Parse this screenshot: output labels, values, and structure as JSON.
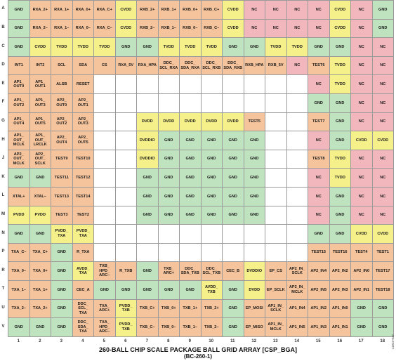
{
  "title": "260-BALL CHIP SCALE PACKAGE BALL GRID ARRAY [CSP_BGA]",
  "subtitle": "(BC-260-1)",
  "figure_id": "11823-037",
  "columns": [
    "1",
    "2",
    "3",
    "4",
    "5",
    "6",
    "7",
    "8",
    "9",
    "10",
    "11",
    "12",
    "13",
    "14",
    "15",
    "16",
    "17",
    "18"
  ],
  "palette": {
    "G": "#bfe3bf",
    "Y": "#f6f08a",
    "O": "#f6c49c",
    "W": "#ffffff",
    "R": "#f5b0b0",
    "N": "#f2b7bd"
  },
  "rows": [
    {
      "label": "A",
      "cells": [
        "GND|G",
        "RXA_2+|O",
        "RXA_1+|O",
        "RXA_0+|O",
        "RXA_C+|O",
        "CVDD|Y",
        "RXB_2+|O",
        "RXB_1+|O",
        "RXB_0+|O",
        "RXB_C+|O",
        "CVDD|Y",
        "NC|N",
        "NC|N",
        "NC|N",
        "NC|N",
        "CVDD|Y",
        "NC|N",
        "GND|G"
      ]
    },
    {
      "label": "B",
      "cells": [
        "GND|G",
        "RXA_2–|O",
        "RXA_1–|O",
        "RXA_0–|O",
        "RXA_C–|O",
        "CVDD|Y",
        "RXB_2–|O",
        "RXB_1–|O",
        "RXB_0–|O",
        "RXB_C–|O",
        "CVDD|Y",
        "NC|N",
        "NC|N",
        "NC|N",
        "NC|N",
        "CVDD|Y",
        "NC|N",
        "GND|G"
      ]
    },
    {
      "label": "C",
      "cells": [
        "GND|G",
        "CVDD|Y",
        "TVDD|Y",
        "TVDD|Y",
        "TVDD|Y",
        "GND|G",
        "GND|G",
        "TVDD|Y",
        "TVDD|Y",
        "TVDD|Y",
        "GND|G",
        "GND|G",
        "TVDD|Y",
        "TVDD|Y",
        "GND|G",
        "GND|G",
        "NC|N",
        "NC|N"
      ]
    },
    {
      "label": "D",
      "cells": [
        "INT1|O",
        "INT2|O",
        "SCL|O",
        "SDA|O",
        "CS|O",
        "RXA_5V|O",
        "RXA_HPA|O",
        "DDC_\nSCL_RXA|O",
        "DDC_\nSDA_RXA|O",
        "DDC_\nSCL_RXB|O",
        "DDC_\nSDA_RXB|O",
        "RXB_HPA|O",
        "RXB_5V|O",
        "NC|N",
        "TEST6|O",
        "TVDD|Y",
        "NC|N",
        "NC|N"
      ]
    },
    {
      "label": "E",
      "cells": [
        "AP1_\nOUT0|O",
        "AP1_\nOUT1|O",
        "ALSB|O",
        "RESET|O",
        "|W",
        "|W",
        "|W",
        "|W",
        "|W",
        "|W",
        "|W",
        "|W",
        "|W",
        "|W",
        "NC|N",
        "TVDD|Y",
        "NC|N",
        "NC|N"
      ]
    },
    {
      "label": "F",
      "cells": [
        "AP1_\nOUT2|O",
        "AP1_\nOUT3|O",
        "AP2_\nOUT0|O",
        "AP2_\nOUT1|O",
        "|W",
        "|W",
        "|W",
        "|W",
        "|W",
        "|W",
        "|W",
        "|W",
        "|W",
        "|W",
        "GND|G",
        "GND|G",
        "NC|N",
        "NC|N"
      ]
    },
    {
      "label": "G",
      "cells": [
        "AP1_\nOUT4|O",
        "AP1_\nOUT5|O",
        "AP2_\nOUT2|O",
        "AP2_\nOUT3|O",
        "|W",
        "|W",
        "DVDD|Y",
        "DVDD|Y",
        "DVDD|Y",
        "DVDD|Y",
        "DVDD|Y",
        "TEST5|O",
        "|W",
        "|W",
        "TEST7|O",
        "GND|G",
        "NC|N",
        "NC|N"
      ]
    },
    {
      "label": "H",
      "cells": [
        "AP1_\nOUT_\nMCLK|O",
        "AP1_\nOUT_\nLRCLK|O",
        "AP2_\nOUT4|O",
        "AP2_\nOUT5|O",
        "|W",
        "|W",
        "DVDDIO|Y",
        "GND|G",
        "GND|G",
        "GND|G",
        "GND|G",
        "GND|G",
        "|W",
        "|W",
        "NC|N",
        "GND|G",
        "CVDD|Y",
        "CVDD|Y"
      ]
    },
    {
      "label": "J",
      "cells": [
        "AP2_\nOUT_\nMCLK|O",
        "AP2_\nOUT_\nSCLK|O",
        "TEST9|O",
        "TEST10|O",
        "|W",
        "|W",
        "DVDDIO|Y",
        "GND|G",
        "GND|G",
        "GND|G",
        "GND|G",
        "GND|G",
        "|W",
        "|W",
        "TEST8|O",
        "TVDD|Y",
        "NC|N",
        "NC|N"
      ]
    },
    {
      "label": "K",
      "cells": [
        "GND|G",
        "GND|G",
        "TEST11|O",
        "TEST12|O",
        "|W",
        "|W",
        "GND|G",
        "GND|G",
        "GND|G",
        "GND|G",
        "GND|G",
        "GND|G",
        "|W",
        "|W",
        "NC|N",
        "TVDD|Y",
        "NC|N",
        "NC|N"
      ]
    },
    {
      "label": "L",
      "cells": [
        "XTAL+|O",
        "XTAL–|O",
        "TEST13|O",
        "TEST14|O",
        "|W",
        "|W",
        "GND|G",
        "GND|G",
        "GND|G",
        "GND|G",
        "GND|G",
        "GND|G",
        "|W",
        "|W",
        "NC|N",
        "GND|G",
        "NC|N",
        "NC|N"
      ]
    },
    {
      "label": "M",
      "cells": [
        "PVDD|Y",
        "PVDD|Y",
        "TEST3|O",
        "TEST2|O",
        "|W",
        "|W",
        "GND|G",
        "GND|G",
        "GND|G",
        "GND|G",
        "GND|G",
        "GND|G",
        "|W",
        "|W",
        "NC|N",
        "GND|G",
        "NC|N",
        "NC|N"
      ]
    },
    {
      "label": "N",
      "cells": [
        "GND|G",
        "GND|G",
        "PVDD_\nTXA|Y",
        "PVDD_\nTXA|Y",
        "|W",
        "|W",
        "|W",
        "|W",
        "|W",
        "|W",
        "|W",
        "|W",
        "|W",
        "|W",
        "GND|G",
        "GND|G",
        "CVDD|Y",
        "CVDD|Y"
      ]
    },
    {
      "label": "P",
      "cells": [
        "TXA_C–|O",
        "TXA_C+|O",
        "GND|G",
        "R_TXA|O",
        "|W",
        "|W",
        "|W",
        "|W",
        "|W",
        "|W",
        "|W",
        "|W",
        "|W",
        "|W",
        "TEST15|O",
        "TEST16|O",
        "TEST4|O",
        "TEST1|O"
      ]
    },
    {
      "label": "R",
      "cells": [
        "TXA_0–|O",
        "TXA_0+|O",
        "GND|G",
        "AVDD_\nTXA|Y",
        "TXB_\nHPD_\nARC–|O",
        "R_TXB|O",
        "GND|G",
        "TXB_\nARC+|O",
        "DDC_\nSDA_TXB|O",
        "DDC_\nSCL_TXB|O",
        "CEC_B|O",
        "DVDDIO|Y",
        "EP_CS|O",
        "AP2_IN_\nSCLK|O",
        "AP2_IN4|O",
        "AP2_IN2|O",
        "AP2_IN0|O",
        "TEST17|O"
      ]
    },
    {
      "label": "T",
      "cells": [
        "TXA_1–|O",
        "TXA_1+|O",
        "GND|G",
        "CEC_A|O",
        "GND|G",
        "GND|G",
        "GND|G",
        "GND|G",
        "GND|G",
        "AVDD_\nTXB|Y",
        "GND|G",
        "DVDD|Y",
        "EP_SCLK|O",
        "AP2_IN_\nMCLK|O",
        "AP2_IN5|O",
        "AP2_IN3|O",
        "AP2_IN1|O",
        "TEST18|O"
      ]
    },
    {
      "label": "U",
      "cells": [
        "TXA_2–|O",
        "TXA_2+|O",
        "GND|G",
        "DDC_\nSCL_\nTXA|O",
        "TXA_\nARC+|O",
        "PVDD_\nTXB|Y",
        "TXB_C+|O",
        "TXB_0+|O",
        "TXB_1+|O",
        "TXB_2+|O",
        "GND|G",
        "EP_MOSI|O",
        "AP1_IN_\nSCLK|O",
        "AP1_IN4|O",
        "AP1_IN2|O",
        "AP1_IN0|O",
        "GND|G",
        "GND|G"
      ]
    },
    {
      "label": "V",
      "cells": [
        "GND|G",
        "GND|G",
        "GND|G",
        "DDC_\nSDA_\nTXA|O",
        "TXA_\nHPD_\nARC–|O",
        "PVDD_\nTXB|Y",
        "TXB_C–|O",
        "TXB_0–|O",
        "TXB_1–|O",
        "TXB_2–|O",
        "GND|G",
        "EP_MISO|O",
        "AP1_IN_\nMCLK|O",
        "AP1_IN5|O",
        "AP1_IN3|O",
        "AP1_IN1|O",
        "GND|G",
        "GND|G"
      ]
    }
  ]
}
